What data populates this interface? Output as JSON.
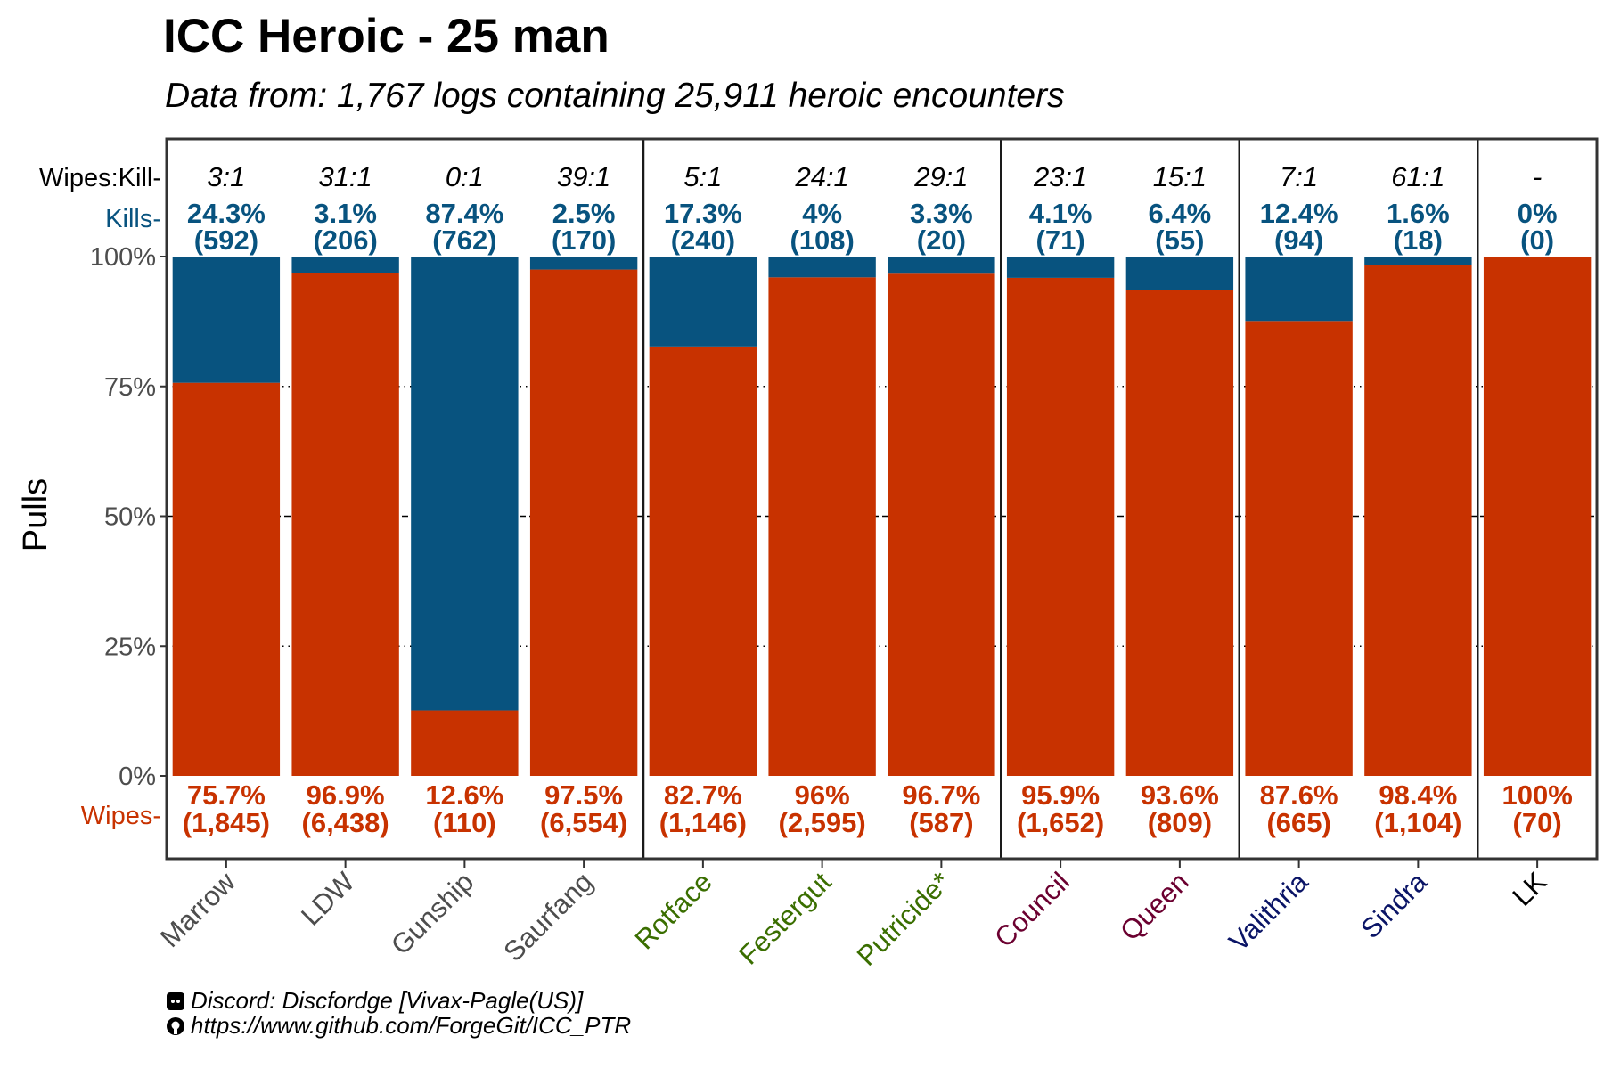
{
  "chart_data": {
    "type": "bar",
    "stacked": true,
    "title": "ICC Heroic - 25 man",
    "subtitle": "Data from: 1,767 logs containing 25,911 heroic encounters",
    "ylabel": "Pulls",
    "ylim": [
      0,
      100
    ],
    "yticks": [
      "0%",
      "25%",
      "50%",
      "75%",
      "100%"
    ],
    "grid": {
      "dotted_at": [
        25,
        75
      ],
      "dashed_at": [
        50
      ]
    },
    "top_row_label": "Wipes:Kill",
    "kills_label": "Kills",
    "wipes_label": "Wipes",
    "colors": {
      "kills": "#08537F",
      "wipes": "#C83200"
    },
    "categories": [
      {
        "name": "Marrow",
        "color": "#4D4D4D"
      },
      {
        "name": "LDW",
        "color": "#4D4D4D"
      },
      {
        "name": "Gunship",
        "color": "#4D4D4D"
      },
      {
        "name": "Saurfang",
        "color": "#4D4D4D"
      },
      {
        "name": "Rotface",
        "color": "#3A6E00"
      },
      {
        "name": "Festergut",
        "color": "#3A6E00"
      },
      {
        "name": "Putricide*",
        "color": "#3A6E00"
      },
      {
        "name": "Council",
        "color": "#6B0030"
      },
      {
        "name": "Queen",
        "color": "#6B0030"
      },
      {
        "name": "Valithria",
        "color": "#0A1466"
      },
      {
        "name": "Sindra",
        "color": "#0A1466"
      },
      {
        "name": "LK",
        "color": "#000000"
      }
    ],
    "series": [
      {
        "name": "Kills",
        "values": [
          24.3,
          3.1,
          87.4,
          2.5,
          17.3,
          4,
          3.3,
          4.1,
          6.4,
          12.4,
          1.6,
          0
        ],
        "labels": [
          "24.3%",
          "3.1%",
          "87.4%",
          "2.5%",
          "17.3%",
          "4%",
          "3.3%",
          "4.1%",
          "6.4%",
          "12.4%",
          "1.6%",
          "0%"
        ],
        "counts": [
          "(592)",
          "(206)",
          "(762)",
          "(170)",
          "(240)",
          "(108)",
          "(20)",
          "(71)",
          "(55)",
          "(94)",
          "(18)",
          "(0)"
        ]
      },
      {
        "name": "Wipes",
        "values": [
          75.7,
          96.9,
          12.6,
          97.5,
          82.7,
          96,
          96.7,
          95.9,
          93.6,
          87.6,
          98.4,
          100
        ],
        "labels": [
          "75.7%",
          "96.9%",
          "12.6%",
          "97.5%",
          "82.7%",
          "96%",
          "96.7%",
          "95.9%",
          "93.6%",
          "87.6%",
          "98.4%",
          "100%"
        ],
        "counts": [
          "(1,845)",
          "(6,438)",
          "(110)",
          "(6,554)",
          "(1,146)",
          "(2,595)",
          "(587)",
          "(1,652)",
          "(809)",
          "(665)",
          "(1,104)",
          "(70)"
        ]
      }
    ],
    "ratios": [
      "3:1",
      "31:1",
      "0:1",
      "39:1",
      "5:1",
      "24:1",
      "29:1",
      "23:1",
      "15:1",
      "7:1",
      "61:1",
      "-"
    ],
    "group_separators_after": [
      3,
      6,
      8,
      10
    ]
  },
  "footer": {
    "discord": "Discord: Discfordge [Vivax-Pagle(US)]",
    "github": "https://www.github.com/ForgeGit/ICC_PTR",
    "discord_icon": "discord-icon",
    "github_icon": "github-icon"
  }
}
